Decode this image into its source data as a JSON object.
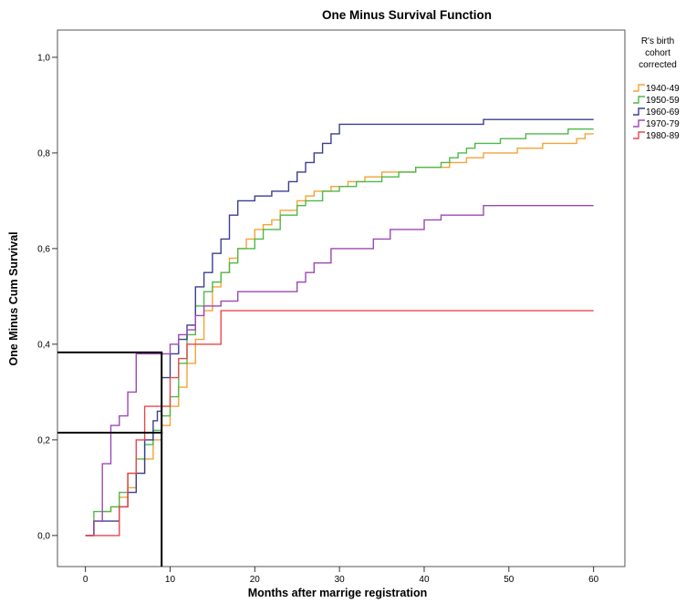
{
  "chart_data": {
    "type": "line",
    "title": "One Minus Survival Function",
    "xlabel": "Months after marrige registration",
    "ylabel": "One Minus Cum Survival",
    "xlim": [
      -3.3,
      63.7
    ],
    "ylim": [
      -0.065,
      1.057
    ],
    "x_ticks": [
      0,
      10,
      20,
      30,
      40,
      50,
      60
    ],
    "x_tick_labels": [
      "0",
      "10",
      "20",
      "30",
      "40",
      "50",
      "60"
    ],
    "y_ticks": [
      0,
      0.2,
      0.4,
      0.6,
      0.8,
      1.0
    ],
    "y_tick_labels": [
      "0,0",
      "0,2",
      "0,4",
      "0,6",
      "0,8",
      "1,0"
    ],
    "grid": false,
    "step": true,
    "legend_position": "right",
    "legend_title": [
      "R's birth",
      "cohort",
      "corrected"
    ],
    "reference_lines": {
      "x": [
        9
      ],
      "y": [
        0.215,
        0.383
      ]
    },
    "series": [
      {
        "name": "1940-49",
        "color": "#F5A236",
        "x": [
          0,
          1,
          2,
          3,
          4,
          5,
          6,
          7,
          8,
          9,
          10,
          11,
          12,
          13,
          14,
          15,
          16,
          17,
          18,
          19,
          20,
          21,
          22,
          23,
          25,
          26,
          27,
          29,
          31,
          33,
          35,
          39,
          43,
          45,
          47,
          51,
          54,
          58,
          59,
          60
        ],
        "y": [
          0,
          0.03,
          0.05,
          0.06,
          0.08,
          0.1,
          0.13,
          0.16,
          0.2,
          0.23,
          0.27,
          0.31,
          0.36,
          0.41,
          0.47,
          0.52,
          0.55,
          0.58,
          0.6,
          0.62,
          0.64,
          0.65,
          0.66,
          0.68,
          0.7,
          0.71,
          0.72,
          0.73,
          0.74,
          0.75,
          0.76,
          0.77,
          0.78,
          0.79,
          0.8,
          0.81,
          0.82,
          0.83,
          0.84,
          0.84
        ]
      },
      {
        "name": "1950-59",
        "color": "#4DB948",
        "x": [
          0,
          1,
          3,
          4,
          5,
          6,
          7,
          8,
          9,
          10,
          11,
          12,
          13,
          14,
          15,
          16,
          17,
          18,
          20,
          21,
          23,
          25,
          26,
          28,
          30,
          32,
          35,
          37,
          39,
          42,
          43,
          44,
          45,
          46,
          49,
          52,
          57,
          60
        ],
        "y": [
          0,
          0.05,
          0.06,
          0.09,
          0.13,
          0.16,
          0.19,
          0.22,
          0.25,
          0.29,
          0.36,
          0.42,
          0.48,
          0.51,
          0.53,
          0.55,
          0.57,
          0.6,
          0.62,
          0.64,
          0.67,
          0.69,
          0.7,
          0.72,
          0.73,
          0.74,
          0.75,
          0.76,
          0.77,
          0.78,
          0.79,
          0.8,
          0.81,
          0.82,
          0.83,
          0.84,
          0.85,
          0.85
        ]
      },
      {
        "name": "1960-69",
        "color": "#3A3F8E",
        "x": [
          0,
          1,
          4,
          5,
          6,
          7,
          8,
          8.5,
          9,
          10,
          11,
          12,
          13,
          14,
          15,
          16,
          17,
          18,
          20,
          22,
          24,
          25,
          26,
          27,
          28,
          29,
          30,
          47,
          60
        ],
        "y": [
          0,
          0.03,
          0.06,
          0.09,
          0.13,
          0.2,
          0.24,
          0.26,
          0.33,
          0.38,
          0.41,
          0.44,
          0.52,
          0.55,
          0.59,
          0.62,
          0.67,
          0.7,
          0.71,
          0.72,
          0.74,
          0.76,
          0.78,
          0.8,
          0.82,
          0.84,
          0.86,
          0.87,
          0.87
        ]
      },
      {
        "name": "1970-79",
        "color": "#9B48B5",
        "x": [
          0,
          1,
          2,
          3,
          4,
          5,
          6,
          9,
          10,
          11,
          12,
          13,
          14,
          16,
          18,
          25,
          26,
          27,
          29,
          34,
          36,
          40,
          42,
          47,
          60
        ],
        "y": [
          0,
          0.03,
          0.15,
          0.23,
          0.25,
          0.3,
          0.38,
          0.38,
          0.4,
          0.42,
          0.43,
          0.46,
          0.48,
          0.49,
          0.51,
          0.53,
          0.55,
          0.57,
          0.6,
          0.62,
          0.64,
          0.66,
          0.67,
          0.69,
          0.69
        ]
      },
      {
        "name": "1980-89",
        "color": "#E8474A",
        "x": [
          0,
          4,
          5,
          6,
          7,
          10,
          11,
          12,
          16,
          60
        ],
        "y": [
          0,
          0.06,
          0.13,
          0.2,
          0.27,
          0.33,
          0.37,
          0.4,
          0.47,
          0.47
        ]
      }
    ]
  }
}
